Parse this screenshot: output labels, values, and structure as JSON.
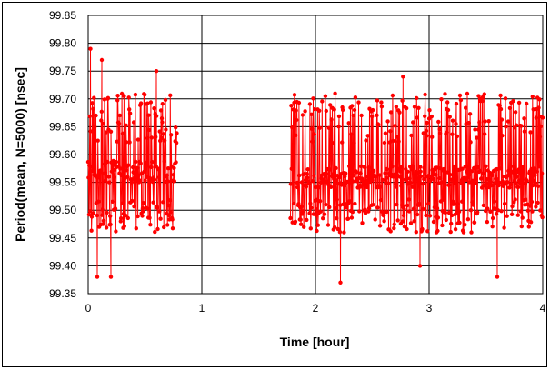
{
  "chart_data": {
    "type": "scatter",
    "title": "",
    "xlabel": "Time [hour]",
    "ylabel": "Period(mean, N=5000) [nsec]",
    "xlim": [
      0,
      4
    ],
    "ylim": [
      99.35,
      99.85
    ],
    "x_ticks": [
      "0",
      "1",
      "2",
      "3",
      "4"
    ],
    "y_ticks": [
      "99.35",
      "99.40",
      "99.45",
      "99.50",
      "99.55",
      "99.60",
      "99.65",
      "99.70",
      "99.75",
      "99.80",
      "99.85"
    ],
    "grid": true,
    "legend": "none",
    "series_color": "#ff0000",
    "marker": "circle",
    "connected_by_lines": true,
    "segments": [
      {
        "x_start": 0.0,
        "x_end": 0.78,
        "baseline": 99.57,
        "y_min": 99.38,
        "y_max": 99.79
      },
      {
        "x_start": 1.78,
        "x_end": 4.0,
        "baseline": 99.56,
        "y_min": 99.37,
        "y_max": 99.74
      }
    ],
    "peaks": [
      {
        "x": 0.02,
        "y": 99.79
      },
      {
        "x": 0.12,
        "y": 99.77
      },
      {
        "x": 0.6,
        "y": 99.75
      },
      {
        "x": 2.77,
        "y": 99.74
      },
      {
        "x": 0.08,
        "y": 99.38
      },
      {
        "x": 0.2,
        "y": 99.38
      },
      {
        "x": 2.22,
        "y": 99.37
      },
      {
        "x": 3.6,
        "y": 99.38
      },
      {
        "x": 2.92,
        "y": 99.4
      }
    ]
  }
}
